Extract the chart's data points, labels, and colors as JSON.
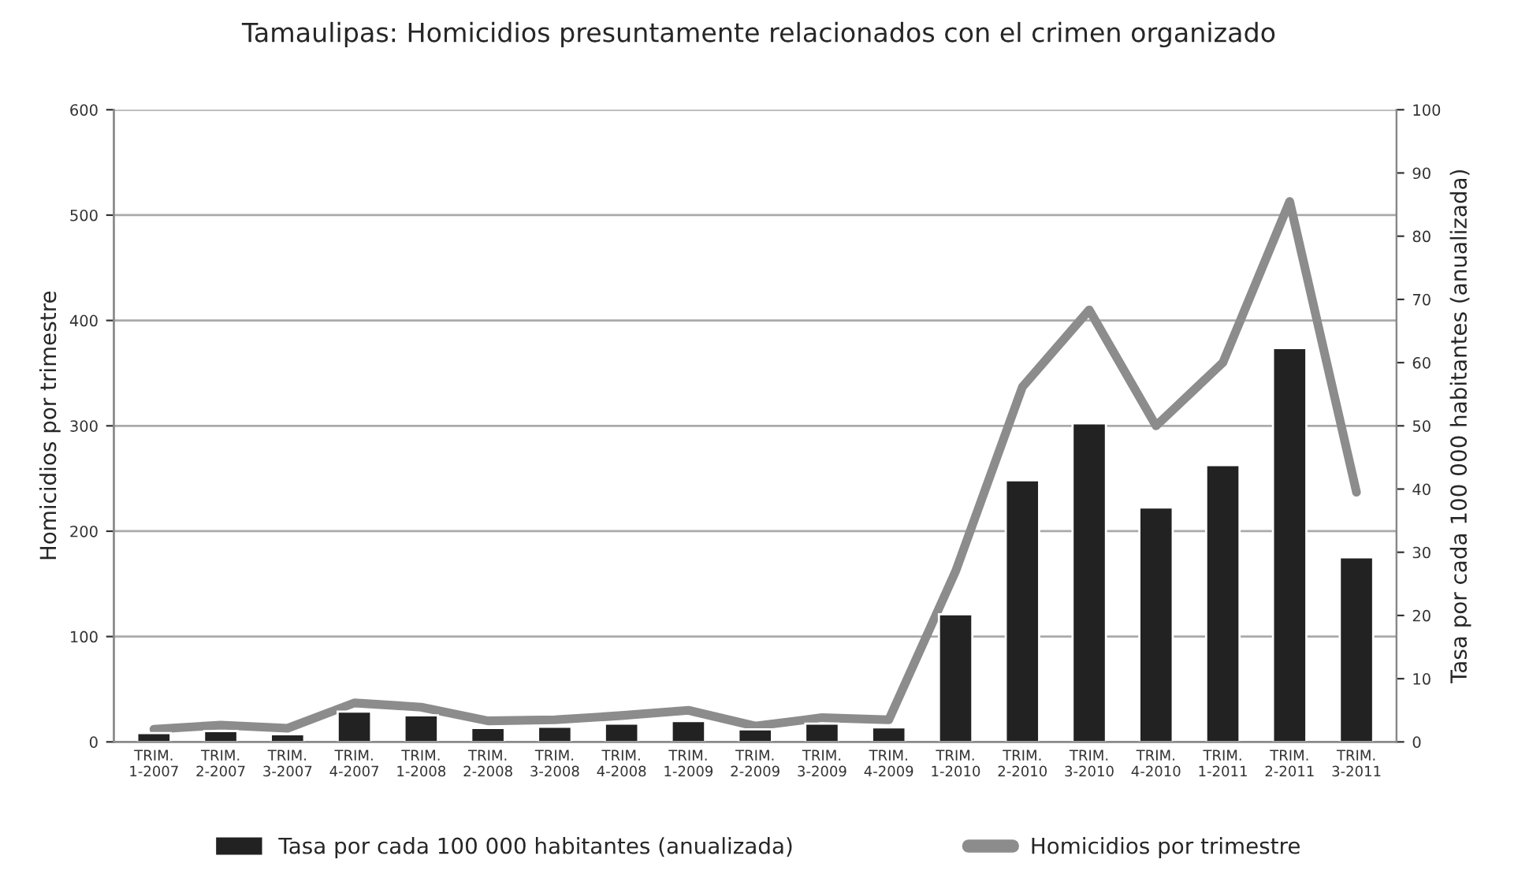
{
  "chart_data": {
    "type": "bar",
    "title": "Tamaulipas: Homicidios presuntamente relacionados con el crimen organizado",
    "ylabel": "Homicidios por trimestre",
    "y2label": "Tasa por cada 100 000 habitantes (anualizada)",
    "categories": [
      "TRIM.\n1-2007",
      "TRIM.\n2-2007",
      "TRIM.\n3-2007",
      "TRIM.\n4-2007",
      "TRIM.\n1-2008",
      "TRIM.\n2-2008",
      "TRIM.\n3-2008",
      "TRIM.\n4-2008",
      "TRIM.\n1-2009",
      "TRIM.\n2-2009",
      "TRIM.\n3-2009",
      "TRIM.\n4-2009",
      "TRIM.\n1-2010",
      "TRIM.\n2-2010",
      "TRIM.\n3-2010",
      "TRIM.\n4-2010",
      "TRIM.\n1-2011",
      "TRIM.\n2-2011",
      "TRIM.\n3-2011"
    ],
    "series": [
      {
        "name": "Tasa por cada 100 000 habitantes (anualizada)",
        "axis": "y2",
        "color": "#222222",
        "values": [
          1.4,
          1.7,
          1.2,
          4.8,
          4.2,
          2.2,
          2.4,
          2.9,
          3.3,
          2.0,
          2.9,
          2.3,
          20.2,
          41.4,
          50.4,
          37.1,
          43.8,
          62.3,
          29.2
        ]
      },
      {
        "name": "Homicidios por trimestre",
        "type": "line",
        "axis": "y",
        "color": "#8c8c8c",
        "values": [
          12,
          16,
          13,
          37,
          33,
          20,
          21,
          25,
          30,
          15,
          23,
          21,
          162,
          337,
          410,
          300,
          360,
          513,
          237
        ]
      }
    ],
    "ylim": [
      0,
      600
    ],
    "yticks": [
      0,
      100,
      200,
      300,
      400,
      500,
      600
    ],
    "y2lim": [
      0,
      100
    ],
    "y2ticks": [
      0,
      10,
      20,
      30,
      40,
      50,
      60,
      70,
      80,
      90,
      100
    ],
    "grid": "y",
    "legend": "bottom",
    "marker": "none",
    "line_style": "solid"
  }
}
